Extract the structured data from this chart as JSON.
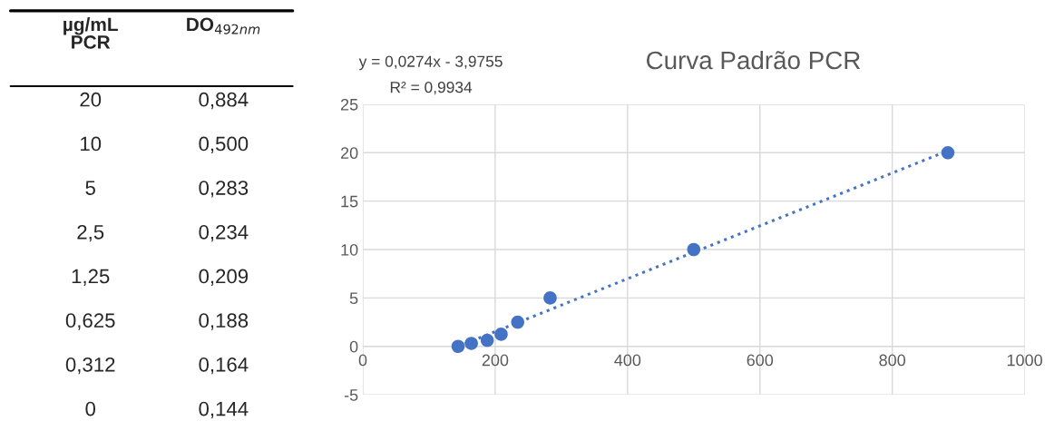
{
  "chart_data": {
    "type": "scatter",
    "title": "Curva Padrão PCR",
    "x": [
      884,
      500,
      283,
      234,
      209,
      188,
      164,
      144
    ],
    "series": [
      {
        "type": "scatter",
        "color": "#4472c4",
        "marker": "circle",
        "values": [
          20,
          10,
          5,
          2.5,
          1.25,
          0.625,
          0.312,
          0
        ]
      },
      {
        "type": "line",
        "color": "#4472c4",
        "line_style": "dotted",
        "marker": "none",
        "x": [
          144,
          884
        ],
        "values": [
          0,
          20.2
        ]
      }
    ],
    "annotations": [
      "y = 0,0274x - 3,9755",
      "R² = 0,9934",
      "µg/mL\nPCR",
      "DO$_{492nm}$",
      "20",
      "0,884",
      "10",
      "0,500",
      "5",
      "0,283",
      "2,5",
      "0,234",
      "1,25",
      "0,209",
      "0,625",
      "0,188",
      "0,312",
      "0,164",
      "0",
      "0,144"
    ],
    "xlim": [
      0,
      1000
    ],
    "xticks": [
      0,
      200,
      400,
      600,
      800,
      1000
    ],
    "ylim": [
      -5,
      25
    ],
    "yticks": [
      -5,
      0,
      5,
      10,
      15,
      20,
      25
    ],
    "grid": true,
    "legend": false
  }
}
